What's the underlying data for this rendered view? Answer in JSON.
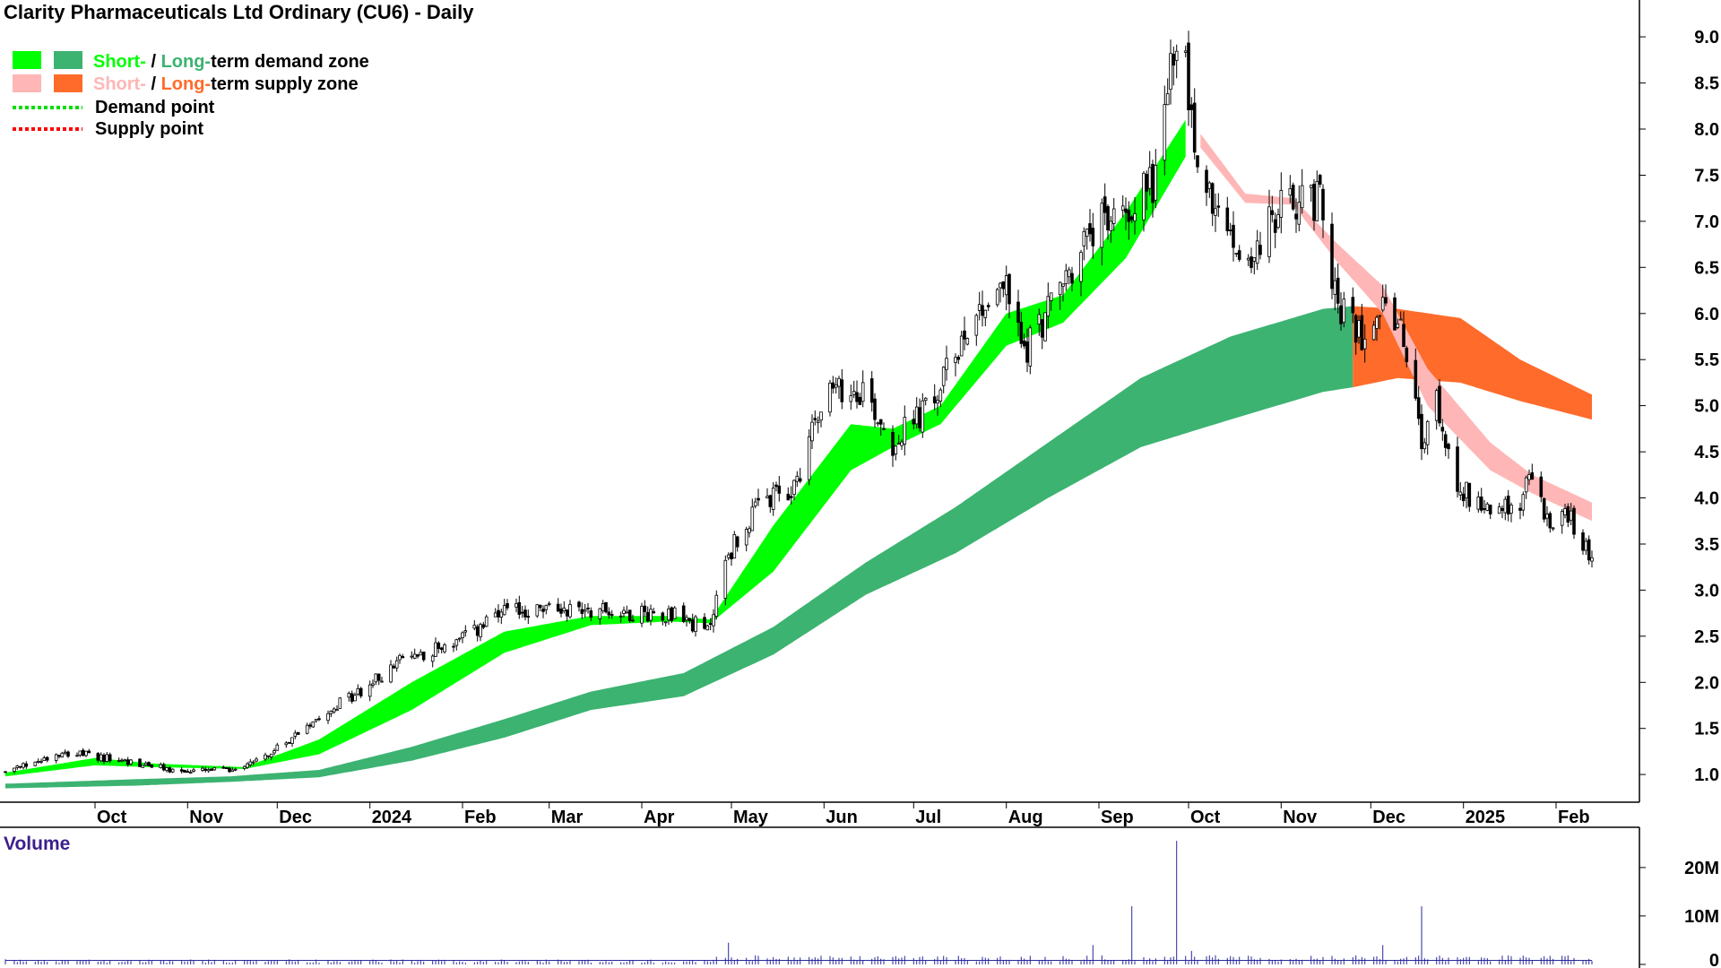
{
  "chart_data": {
    "type": "candlestick",
    "title": "Clarity Pharmaceuticals Ltd Ordinary (CU6) - Daily",
    "legend": {
      "placement": "top-left",
      "demand_zone": {
        "short": "Short-",
        "sep": " / ",
        "long": "Long-",
        "rest": "term demand zone"
      },
      "supply_zone": {
        "short": "Short-",
        "sep": " / ",
        "long": "Long-",
        "rest": "term supply zone"
      },
      "demand_point": "Demand point",
      "supply_point": "Supply point"
    },
    "colors": {
      "short_demand": "#00ff00",
      "long_demand": "#3cb371",
      "short_supply": "#ffb6b6",
      "long_supply": "#ff6b2b",
      "demand_point": "#00dd00",
      "supply_point": "#ff0000",
      "candle_up": "#ffffff",
      "candle_down": "#000000",
      "volume": "#2a2a9c",
      "volume_label": "#3b1f8c"
    },
    "price_axis": {
      "side": "right",
      "range": [
        0.7,
        9.4
      ],
      "ticks": [
        "1.0",
        "1.5",
        "2.0",
        "2.5",
        "3.0",
        "3.5",
        "4.0",
        "4.5",
        "5.0",
        "5.5",
        "6.0",
        "6.5",
        "7.0",
        "7.5",
        "8.0",
        "8.5",
        "9.0"
      ]
    },
    "x_axis_labels": [
      "Oct",
      "Nov",
      "Dec",
      "2024",
      "Feb",
      "Mar",
      "Apr",
      "May",
      "Jun",
      "Jul",
      "Aug",
      "Sep",
      "Oct",
      "Nov",
      "Dec",
      "2025",
      "Feb"
    ],
    "price_anchors": [
      [
        "2023-09-01",
        1.02
      ],
      [
        "2023-09-20",
        1.25
      ],
      [
        "2023-10-10",
        1.15
      ],
      [
        "2023-10-30",
        1.03
      ],
      [
        "2023-11-15",
        1.05
      ],
      [
        "2023-11-30",
        1.25
      ],
      [
        "2023-12-15",
        1.65
      ],
      [
        "2023-12-29",
        1.9
      ],
      [
        "2024-01-12",
        2.25
      ],
      [
        "2024-01-31",
        2.45
      ],
      [
        "2024-02-15",
        2.75
      ],
      [
        "2024-03-01",
        2.8
      ],
      [
        "2024-03-15",
        2.8
      ],
      [
        "2024-03-29",
        2.75
      ],
      [
        "2024-04-12",
        2.75
      ],
      [
        "2024-04-23",
        2.55
      ],
      [
        "2024-04-30",
        3.4
      ],
      [
        "2024-05-10",
        3.9
      ],
      [
        "2024-05-22",
        4.1
      ],
      [
        "2024-05-31",
        5.1
      ],
      [
        "2024-06-14",
        5.2
      ],
      [
        "2024-06-24",
        4.6
      ],
      [
        "2024-07-08",
        5.05
      ],
      [
        "2024-07-19",
        5.9
      ],
      [
        "2024-07-31",
        6.35
      ],
      [
        "2024-08-07",
        5.6
      ],
      [
        "2024-08-16",
        6.1
      ],
      [
        "2024-08-30",
        6.9
      ],
      [
        "2024-09-09",
        7.1
      ],
      [
        "2024-09-20",
        7.5
      ],
      [
        "2024-09-25",
        8.7
      ],
      [
        "2024-09-30",
        8.65
      ],
      [
        "2024-10-04",
        7.6
      ],
      [
        "2024-10-11",
        7.0
      ],
      [
        "2024-10-21",
        6.55
      ],
      [
        "2024-10-31",
        7.1
      ],
      [
        "2024-11-08",
        7.3
      ],
      [
        "2024-11-15",
        7.2
      ],
      [
        "2024-11-20",
        6.0
      ],
      [
        "2024-11-28",
        5.8
      ],
      [
        "2024-12-05",
        6.2
      ],
      [
        "2024-12-12",
        5.7
      ],
      [
        "2024-12-18",
        4.6
      ],
      [
        "2024-12-23",
        5.0
      ],
      [
        "2024-12-31",
        4.1
      ],
      [
        "2025-01-10",
        3.9
      ],
      [
        "2025-01-17",
        3.85
      ],
      [
        "2025-01-24",
        4.2
      ],
      [
        "2025-01-31",
        3.6
      ],
      [
        "2025-02-05",
        3.85
      ],
      [
        "2025-02-10",
        3.55
      ],
      [
        "2025-02-13",
        3.35
      ]
    ],
    "short_demand_zone": [
      [
        "2023-09-01",
        1.02,
        0.98
      ],
      [
        "2023-10-01",
        1.18,
        1.1
      ],
      [
        "2023-10-20",
        1.12,
        1.08
      ],
      [
        "2023-11-20",
        1.08,
        1.06
      ],
      [
        "2023-12-15",
        1.38,
        1.22
      ],
      [
        "2024-01-15",
        2.0,
        1.7
      ],
      [
        "2024-02-15",
        2.55,
        2.32
      ],
      [
        "2024-03-15",
        2.72,
        2.62
      ],
      [
        "2024-04-10",
        2.72,
        2.66
      ],
      [
        "2024-04-24",
        2.68,
        2.64
      ],
      [
        "2024-05-15",
        3.7,
        3.2
      ],
      [
        "2024-06-10",
        4.8,
        4.3
      ],
      [
        "2024-06-24",
        4.75,
        4.55
      ],
      [
        "2024-07-10",
        5.0,
        4.8
      ],
      [
        "2024-08-01",
        6.0,
        5.65
      ],
      [
        "2024-08-20",
        6.2,
        5.9
      ],
      [
        "2024-09-10",
        7.1,
        6.6
      ],
      [
        "2024-09-30",
        8.1,
        7.7
      ]
    ],
    "long_demand_zone": [
      [
        "2023-09-01",
        0.9,
        0.85
      ],
      [
        "2023-10-15",
        0.95,
        0.88
      ],
      [
        "2023-11-15",
        0.98,
        0.92
      ],
      [
        "2023-12-15",
        1.05,
        0.97
      ],
      [
        "2024-01-15",
        1.3,
        1.15
      ],
      [
        "2024-02-15",
        1.6,
        1.4
      ],
      [
        "2024-03-15",
        1.9,
        1.7
      ],
      [
        "2024-04-15",
        2.1,
        1.85
      ],
      [
        "2024-05-15",
        2.6,
        2.3
      ],
      [
        "2024-06-15",
        3.3,
        2.95
      ],
      [
        "2024-07-15",
        3.9,
        3.4
      ],
      [
        "2024-08-15",
        4.6,
        4.0
      ],
      [
        "2024-09-15",
        5.3,
        4.55
      ],
      [
        "2024-10-15",
        5.75,
        4.85
      ],
      [
        "2024-11-15",
        6.05,
        5.15
      ],
      [
        "2024-11-25",
        6.08,
        5.2
      ]
    ],
    "short_supply_zone": [
      [
        "2024-10-05",
        7.95,
        7.8
      ],
      [
        "2024-10-20",
        7.3,
        7.2
      ],
      [
        "2024-11-05",
        7.25,
        7.18
      ],
      [
        "2024-11-20",
        6.75,
        6.55
      ],
      [
        "2024-12-05",
        6.3,
        6.0
      ],
      [
        "2024-12-20",
        5.4,
        5.0
      ],
      [
        "2025-01-10",
        4.6,
        4.3
      ],
      [
        "2025-01-24",
        4.25,
        4.05
      ],
      [
        "2025-02-13",
        3.95,
        3.75
      ]
    ],
    "long_supply_zone": [
      [
        "2024-11-25",
        6.08,
        5.2
      ],
      [
        "2024-12-10",
        6.05,
        5.3
      ],
      [
        "2024-12-31",
        5.95,
        5.25
      ],
      [
        "2025-01-20",
        5.5,
        5.05
      ],
      [
        "2025-02-13",
        5.12,
        4.85
      ]
    ],
    "volume_panel": {
      "label": "Volume",
      "axis_ticks": [
        "20M",
        "10M",
        "0"
      ],
      "axis_range": [
        0,
        27
      ],
      "baseline_millions": 0.7,
      "spikes_millions": [
        [
          "2024-04-30",
          4.5
        ],
        [
          "2024-06-01",
          2.5
        ],
        [
          "2024-08-30",
          4.0
        ],
        [
          "2024-09-12",
          12.0
        ],
        [
          "2024-09-27",
          25.5
        ],
        [
          "2024-10-02",
          2.8
        ],
        [
          "2024-12-05",
          4.0
        ],
        [
          "2024-12-18",
          12.0
        ]
      ]
    }
  }
}
